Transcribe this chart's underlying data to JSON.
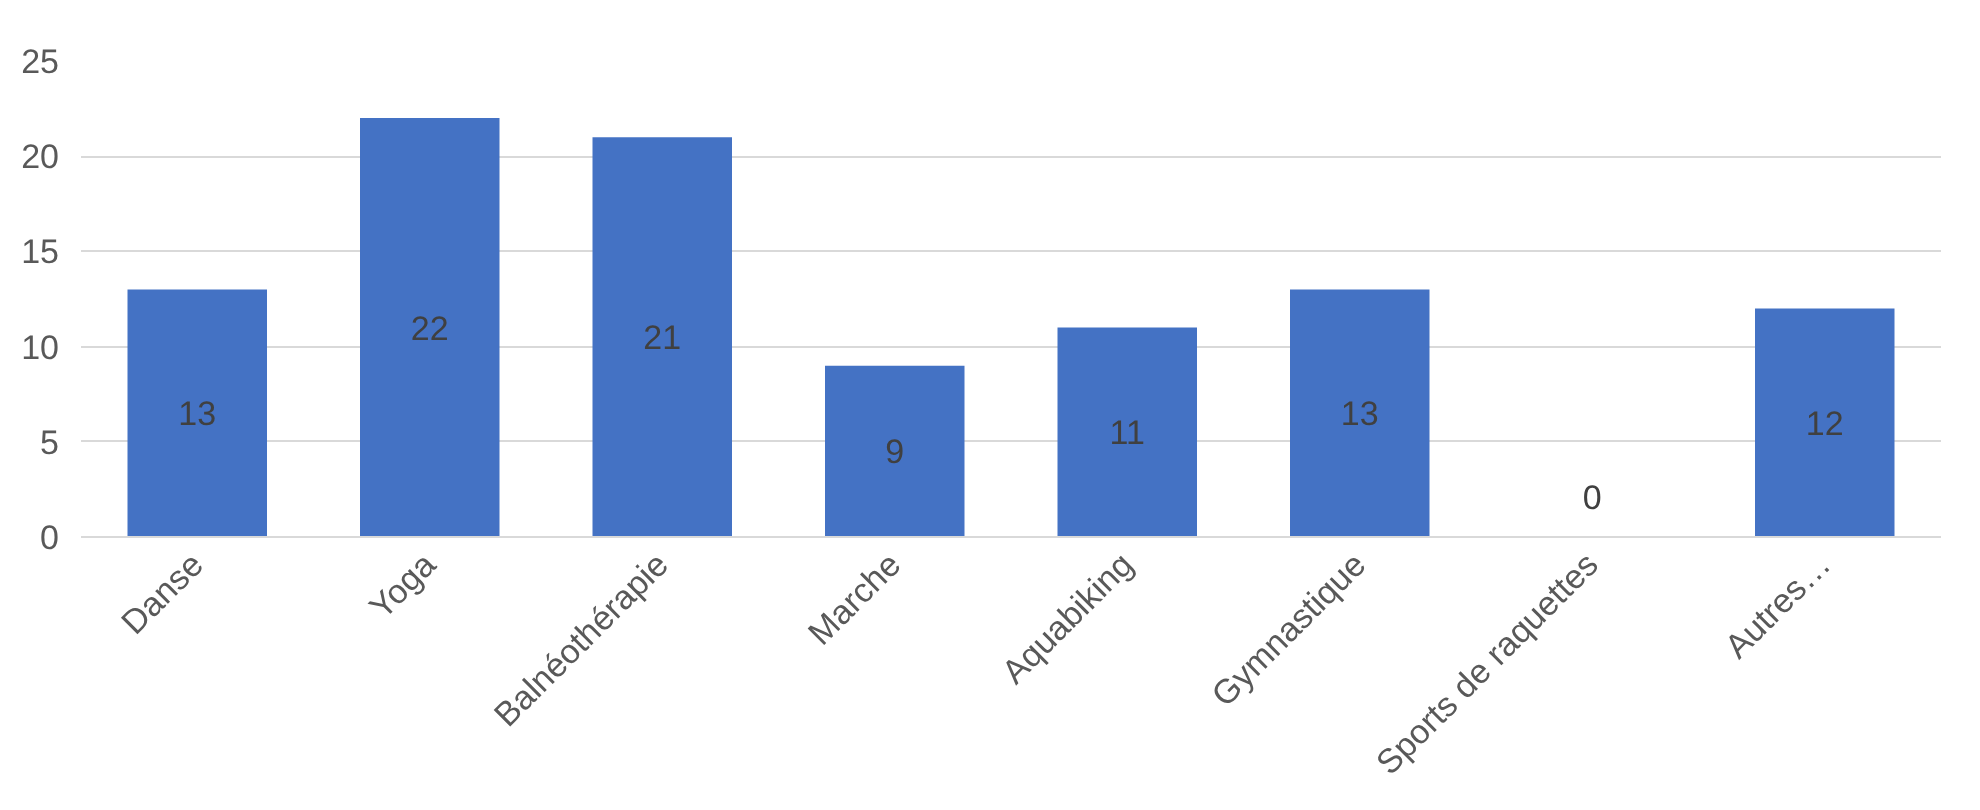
{
  "chart_data": {
    "type": "bar",
    "categories": [
      "Danse",
      "Yoga",
      "Balnéothérapie",
      "Marche",
      "Aquabiking",
      "Gymnastique",
      "Sports de raquettes",
      "Autres…"
    ],
    "values": [
      13,
      22,
      21,
      9,
      11,
      13,
      0,
      12
    ],
    "color": "#4472c4",
    "ylim": [
      0,
      25
    ],
    "yticks": [
      0,
      5,
      10,
      15,
      20,
      25
    ],
    "grid": "y",
    "data_labels": true
  }
}
